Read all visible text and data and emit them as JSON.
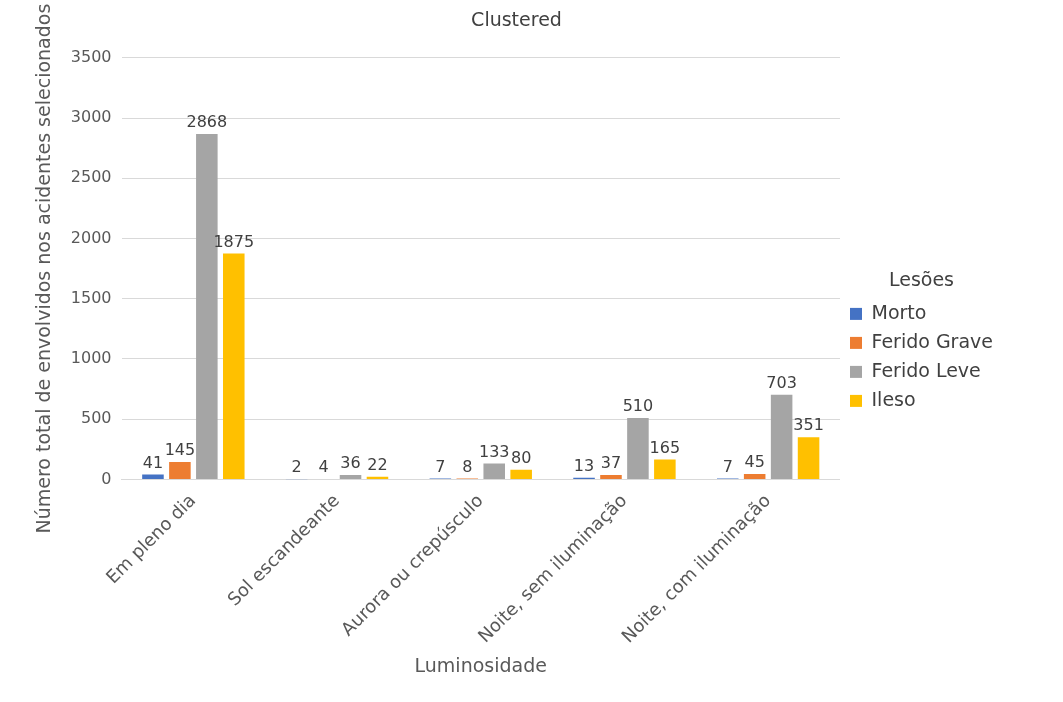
{
  "chart_data": {
    "type": "bar",
    "title": "Clustered",
    "xlabel": "Luminosidade",
    "ylabel": "Número total de envolvidos nos acidentes selecionados",
    "legend_title": "Lesões",
    "categories": [
      "Em pleno dia",
      "Sol escandeante",
      "Aurora ou crepúsculo",
      "Noite, sem iluminação",
      "Noite, com iluminação"
    ],
    "series": [
      {
        "name": "Morto",
        "color": "#4472c4",
        "values": [
          41,
          2,
          7,
          13,
          7
        ]
      },
      {
        "name": "Ferido Grave",
        "color": "#ed7d31",
        "values": [
          145,
          4,
          8,
          37,
          45
        ]
      },
      {
        "name": "Ferido Leve",
        "color": "#a5a5a5",
        "values": [
          2868,
          36,
          133,
          510,
          703
        ]
      },
      {
        "name": "Ileso",
        "color": "#ffc000",
        "values": [
          1875,
          22,
          80,
          165,
          351
        ]
      }
    ],
    "ylim": [
      0,
      3500
    ],
    "yticks": [
      0,
      500,
      1000,
      1500,
      2000,
      2500,
      3000,
      3500
    ],
    "grid": "y",
    "legend": "right",
    "data_labels": true
  }
}
